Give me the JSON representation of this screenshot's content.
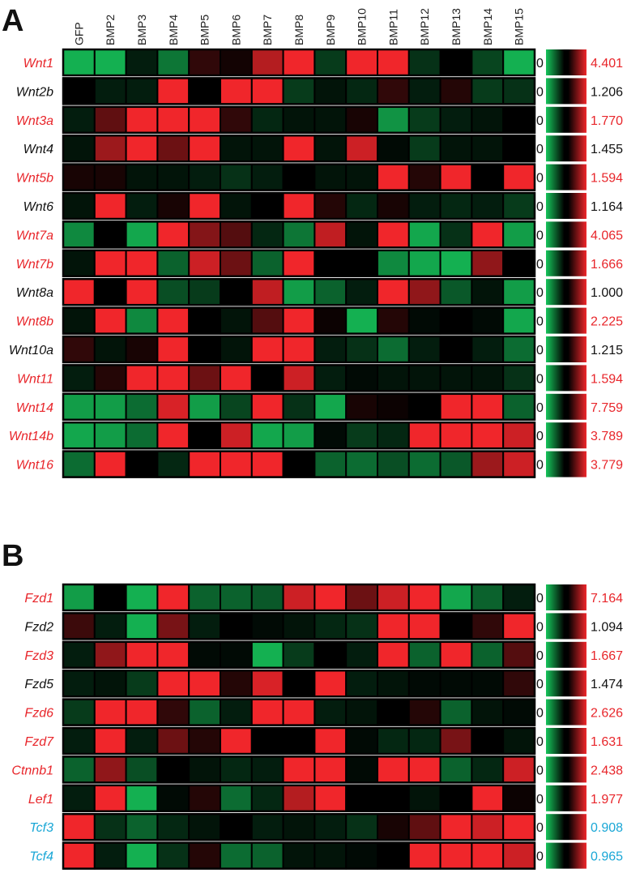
{
  "panels": [
    {
      "letter": "A"
    },
    {
      "letter": "B"
    }
  ],
  "colors": {
    "red_text": "#e8262b",
    "black_text": "#111111",
    "cyan_text": "#1aa7d6",
    "high": "#f0262b",
    "mid": "#000000",
    "low": "#16c45a"
  },
  "chart_data": {
    "type": "heatmap",
    "columns": [
      "GFP",
      "BMP2",
      "BMP3",
      "BMP4",
      "BMP5",
      "BMP6",
      "BMP7",
      "BMP8",
      "BMP9",
      "BMP10",
      "BMP11",
      "BMP12",
      "BMP13",
      "BMP14",
      "BMP15"
    ],
    "scale_min_label": "0",
    "rows": [
      {
        "panel": "A",
        "gene": "Wnt1",
        "color": "red",
        "max": "4.401",
        "values": [
          -0.9,
          -0.9,
          -0.15,
          -0.6,
          0.2,
          0.08,
          0.75,
          1,
          -0.3,
          1,
          1,
          -0.25,
          0,
          -0.35,
          -0.9
        ]
      },
      {
        "panel": "A",
        "gene": "Wnt2b",
        "color": "black",
        "max": "1.206",
        "values": [
          0,
          -0.15,
          -0.15,
          1,
          0,
          1,
          1,
          -0.3,
          -0.1,
          -0.2,
          0.2,
          -0.15,
          0.15,
          -0.3,
          -0.25
        ]
      },
      {
        "panel": "A",
        "gene": "Wnt3a",
        "color": "red",
        "max": "1.770",
        "values": [
          -0.15,
          0.4,
          1,
          1,
          1,
          0.2,
          -0.2,
          -0.1,
          -0.1,
          0.1,
          -0.75,
          -0.3,
          -0.15,
          -0.1,
          0
        ]
      },
      {
        "panel": "A",
        "gene": "Wnt4",
        "color": "black",
        "max": "1.455",
        "values": [
          -0.1,
          0.65,
          1,
          0.45,
          1,
          -0.1,
          -0.1,
          1,
          -0.1,
          0.85,
          -0.05,
          -0.3,
          -0.1,
          -0.1,
          0
        ]
      },
      {
        "panel": "A",
        "gene": "Wnt5b",
        "color": "red",
        "max": "1.594",
        "values": [
          0.1,
          0.1,
          -0.1,
          -0.1,
          -0.15,
          -0.25,
          -0.15,
          0,
          -0.1,
          -0.1,
          1,
          0.15,
          1,
          0,
          1
        ]
      },
      {
        "panel": "A",
        "gene": "Wnt6",
        "color": "black",
        "max": "1.164",
        "values": [
          -0.1,
          1,
          -0.15,
          0.1,
          1,
          -0.1,
          0,
          1,
          0.15,
          -0.2,
          0.1,
          -0.15,
          -0.2,
          -0.15,
          -0.3
        ]
      },
      {
        "panel": "A",
        "gene": "Wnt7a",
        "color": "red",
        "max": "4.065",
        "values": [
          -0.7,
          0,
          -0.85,
          1,
          0.55,
          0.35,
          -0.2,
          -0.6,
          0.8,
          -0.1,
          1,
          -0.85,
          -0.25,
          1,
          -0.8
        ]
      },
      {
        "panel": "A",
        "gene": "Wnt7b",
        "color": "red",
        "max": "1.666",
        "values": [
          -0.1,
          1,
          1,
          -0.5,
          0.85,
          0.45,
          -0.5,
          1,
          0,
          0,
          -0.7,
          -0.85,
          -0.9,
          0.6,
          0
        ]
      },
      {
        "panel": "A",
        "gene": "Wnt8a",
        "color": "black",
        "max": "1.000",
        "values": [
          1,
          0,
          1,
          -0.4,
          -0.3,
          0,
          0.8,
          -0.8,
          -0.5,
          -0.15,
          1,
          0.6,
          -0.45,
          -0.1,
          -0.8
        ]
      },
      {
        "panel": "A",
        "gene": "Wnt8b",
        "color": "red",
        "max": "2.225",
        "values": [
          -0.1,
          1,
          -0.7,
          1,
          0,
          -0.1,
          0.35,
          1,
          0.05,
          -0.9,
          0.15,
          -0.05,
          0,
          -0.05,
          -0.85
        ]
      },
      {
        "panel": "A",
        "gene": "Wnt10a",
        "color": "black",
        "max": "1.215",
        "values": [
          0.2,
          -0.1,
          0.1,
          1,
          0,
          -0.1,
          1,
          1,
          -0.15,
          -0.25,
          -0.55,
          -0.15,
          0,
          -0.15,
          -0.55
        ]
      },
      {
        "panel": "A",
        "gene": "Wnt11",
        "color": "red",
        "max": "1.594",
        "values": [
          -0.15,
          0.15,
          1,
          1,
          0.45,
          1,
          0,
          0.85,
          -0.15,
          -0.05,
          -0.1,
          -0.1,
          -0.1,
          -0.1,
          -0.25
        ]
      },
      {
        "panel": "A",
        "gene": "Wnt14",
        "color": "red",
        "max": "7.759",
        "values": [
          -0.8,
          -0.8,
          -0.55,
          0.9,
          -0.8,
          -0.35,
          1,
          -0.25,
          -0.85,
          0.1,
          0.05,
          0,
          1,
          1,
          -0.5
        ]
      },
      {
        "panel": "A",
        "gene": "Wnt14b",
        "color": "red",
        "max": "3.789",
        "values": [
          -0.85,
          -0.8,
          -0.55,
          1,
          0,
          0.85,
          -0.85,
          -0.8,
          -0.05,
          -0.3,
          -0.2,
          1,
          1,
          1,
          0.85
        ]
      },
      {
        "panel": "A",
        "gene": "Wnt16",
        "color": "red",
        "max": "3.779",
        "values": [
          -0.55,
          1,
          0,
          -0.2,
          1,
          1,
          1,
          0,
          -0.5,
          -0.55,
          -0.4,
          -0.55,
          -0.45,
          0.65,
          0.85
        ]
      },
      {
        "panel": "B",
        "gene": "Fzd1",
        "color": "red",
        "max": "7.164",
        "values": [
          -0.8,
          0,
          -0.9,
          1,
          -0.5,
          -0.5,
          -0.45,
          0.85,
          1,
          0.45,
          0.85,
          1,
          -0.85,
          -0.5,
          -0.15
        ]
      },
      {
        "panel": "B",
        "gene": "Fzd2",
        "color": "black",
        "max": "1.094",
        "values": [
          0.25,
          -0.15,
          -0.9,
          0.5,
          -0.15,
          0,
          -0.05,
          -0.1,
          -0.2,
          -0.25,
          1,
          1,
          0,
          0.2,
          1
        ]
      },
      {
        "panel": "B",
        "gene": "Fzd3",
        "color": "red",
        "max": "1.667",
        "values": [
          -0.15,
          0.6,
          1,
          1,
          -0.05,
          -0.05,
          -0.9,
          -0.3,
          0,
          -0.15,
          1,
          -0.5,
          1,
          -0.5,
          0.35
        ]
      },
      {
        "panel": "B",
        "gene": "Fzd5",
        "color": "black",
        "max": "1.474",
        "values": [
          -0.15,
          -0.1,
          -0.3,
          1,
          1,
          0.15,
          0.9,
          0,
          1,
          -0.15,
          -0.1,
          -0.05,
          -0.05,
          -0.05,
          0.2
        ]
      },
      {
        "panel": "B",
        "gene": "Fzd6",
        "color": "red",
        "max": "2.626",
        "values": [
          -0.3,
          1,
          1,
          0.2,
          -0.5,
          -0.15,
          1,
          1,
          -0.15,
          -0.1,
          0,
          0.15,
          -0.5,
          -0.1,
          -0.05
        ]
      },
      {
        "panel": "B",
        "gene": "Fzd7",
        "color": "red",
        "max": "1.631",
        "values": [
          -0.15,
          1,
          -0.15,
          0.45,
          0.15,
          1,
          0,
          0,
          1,
          -0.05,
          -0.2,
          -0.2,
          0.5,
          0,
          -0.1
        ]
      },
      {
        "panel": "B",
        "gene": "Ctnnb1",
        "color": "red",
        "max": "2.438",
        "values": [
          -0.5,
          0.6,
          -0.4,
          0,
          -0.1,
          -0.2,
          -0.15,
          1,
          1,
          -0.05,
          1,
          1,
          -0.5,
          -0.2,
          0.85
        ]
      },
      {
        "panel": "B",
        "gene": "Lef1",
        "color": "red",
        "max": "1.977",
        "values": [
          -0.15,
          1,
          -0.9,
          -0.05,
          0.15,
          -0.55,
          -0.2,
          0.75,
          1,
          0,
          0,
          -0.1,
          0,
          1,
          0.05
        ]
      },
      {
        "panel": "B",
        "gene": "Tcf3",
        "color": "cyan",
        "max": "0.908",
        "values": [
          1,
          -0.25,
          -0.5,
          -0.2,
          -0.1,
          0,
          -0.15,
          -0.1,
          -0.15,
          -0.25,
          0.1,
          0.4,
          1,
          0.85,
          1
        ]
      },
      {
        "panel": "B",
        "gene": "Tcf4",
        "color": "cyan",
        "max": "0.965",
        "values": [
          1,
          -0.15,
          -0.9,
          -0.25,
          0.15,
          -0.55,
          -0.5,
          -0.1,
          -0.1,
          -0.05,
          0,
          1,
          1,
          1,
          0.85
        ]
      }
    ]
  }
}
